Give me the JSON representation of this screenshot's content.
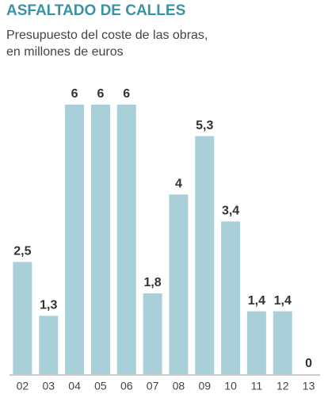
{
  "chart_data": {
    "type": "bar",
    "title": "ASFALTADO DE CALLES",
    "subtitle": [
      "Presupuesto del coste de las obras,",
      "en millones de euros"
    ],
    "categories": [
      "02",
      "03",
      "04",
      "05",
      "06",
      "07",
      "08",
      "09",
      "10",
      "11",
      "12",
      "13"
    ],
    "values": [
      2.5,
      1.3,
      6,
      6,
      6,
      1.8,
      4,
      5.3,
      3.4,
      1.4,
      1.4,
      0
    ],
    "value_labels": [
      "2,5",
      "1,3",
      "6",
      "6",
      "6",
      "1,8",
      "4",
      "5,3",
      "3,4",
      "1,4",
      "1,4",
      "0"
    ],
    "color": "#a9cfd8"
  }
}
